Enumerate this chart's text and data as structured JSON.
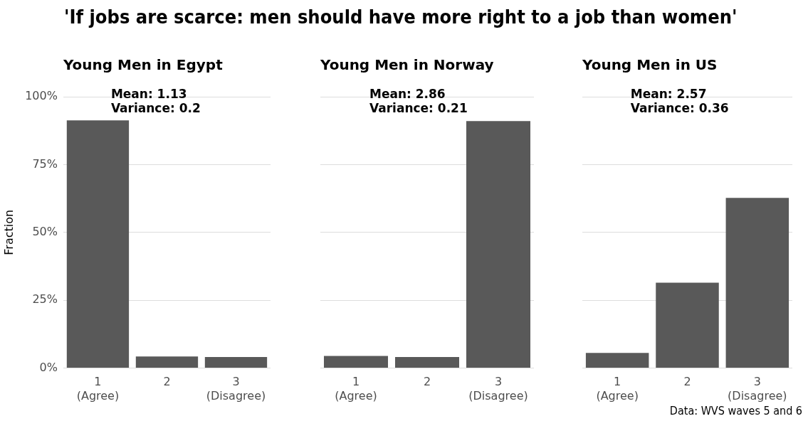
{
  "chart_data": [
    {
      "type": "bar",
      "title": "'If jobs are scarce: men should have more right to a job than women'",
      "subtitle": "Young Men in Egypt",
      "ylabel": "Fraction",
      "categories": [
        "1\n(Agree)",
        "2",
        "3\n(Disagree)"
      ],
      "values": [
        0.913,
        0.043,
        0.041
      ],
      "color": "#595959",
      "ylim": [
        0,
        1
      ],
      "yticks": [
        {
          "value": 0,
          "label": "0%"
        },
        {
          "value": 0.25,
          "label": "25%"
        },
        {
          "value": 0.5,
          "label": "50%"
        },
        {
          "value": 0.75,
          "label": "75%"
        },
        {
          "value": 1,
          "label": "100%"
        }
      ],
      "grid": "y",
      "annotations": [
        "Mean: 1.13",
        "Variance: 0.2"
      ]
    },
    {
      "type": "bar",
      "subtitle": "Young Men in Norway",
      "categories": [
        "1\n(Agree)",
        "2",
        "3\n(Disagree)"
      ],
      "values": [
        0.045,
        0.041,
        0.91
      ],
      "color": "#595959",
      "ylim": [
        0,
        1
      ],
      "yticks": [
        {
          "value": 0,
          "label": null
        },
        {
          "value": 0.25,
          "label": null
        },
        {
          "value": 0.5,
          "label": null
        },
        {
          "value": 0.75,
          "label": null
        },
        {
          "value": 1,
          "label": null
        }
      ],
      "grid": "y",
      "tick_labels": "x",
      "annotations": [
        "Mean: 2.86",
        "Variance: 0.21"
      ]
    },
    {
      "type": "bar",
      "subtitle": "Young Men in US",
      "categories": [
        "1\n(Agree)",
        "2",
        "3\n(Disagree)"
      ],
      "values": [
        0.056,
        0.315,
        0.627
      ],
      "color": "#595959",
      "ylim": [
        0,
        1
      ],
      "yticks": [
        {
          "value": 0,
          "label": null
        },
        {
          "value": 0.25,
          "label": null
        },
        {
          "value": 0.5,
          "label": null
        },
        {
          "value": 0.75,
          "label": null
        },
        {
          "value": 1,
          "label": null
        }
      ],
      "grid": "y",
      "tick_labels": "x",
      "annotations": [
        "Mean: 2.57",
        "Variance: 0.36",
        "Data: WVS waves 5 and 6"
      ]
    }
  ]
}
